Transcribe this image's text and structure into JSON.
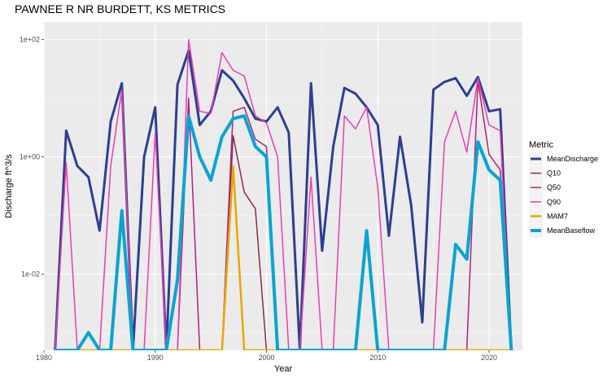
{
  "chart_data": {
    "type": "line",
    "title": "PAWNEE R NR BURDETT, KS  METRICS",
    "xlabel": "Year",
    "ylabel": "Discharge ft^3/s",
    "x_scale": "linear",
    "y_scale": "log10",
    "xlim": [
      1980,
      2023
    ],
    "ylim": [
      0.0005,
      200
    ],
    "x_ticks": [
      {
        "value": 1980,
        "label": "1980"
      },
      {
        "value": 1990,
        "label": "1990"
      },
      {
        "value": 2000,
        "label": "2000"
      },
      {
        "value": 2010,
        "label": "2010"
      },
      {
        "value": 2020,
        "label": "2020"
      }
    ],
    "y_ticks": [
      {
        "value": 0.01,
        "label": "1e-02"
      },
      {
        "value": 1,
        "label": "1e+00"
      },
      {
        "value": 100,
        "label": "1e+02"
      }
    ],
    "grid": true,
    "legend": {
      "title": "Metric",
      "position": "right"
    },
    "years": [
      1981,
      1982,
      1983,
      1984,
      1985,
      1986,
      1987,
      1988,
      1989,
      1990,
      1991,
      1992,
      1993,
      1994,
      1995,
      1996,
      1997,
      1998,
      1999,
      2000,
      2001,
      2002,
      2003,
      2004,
      2005,
      2006,
      2007,
      2008,
      2009,
      2010,
      2011,
      2012,
      2013,
      2014,
      2015,
      2016,
      2017,
      2018,
      2019,
      2020,
      2021,
      2022
    ],
    "series": [
      {
        "name": "MeanDischarge",
        "color": "#2e3f8f",
        "width": 3,
        "values": [
          0.0005,
          2.8,
          0.7,
          0.45,
          0.055,
          4,
          18,
          0.0005,
          1,
          7,
          0.0005,
          17,
          65,
          3.5,
          6,
          30,
          20,
          10,
          4.5,
          4,
          7,
          2.6,
          0.0005,
          18,
          0.025,
          1.5,
          15,
          12,
          7,
          3.5,
          0.045,
          2.2,
          0.15,
          0.0015,
          14,
          19,
          22,
          11,
          23,
          6,
          6.5,
          0.0005
        ]
      },
      {
        "name": "Q10",
        "color": "#8b2a4a",
        "width": 1.5,
        "values": [
          0.0005,
          0.0005,
          0.0005,
          0.0005,
          0.0005,
          0.0005,
          0.0005,
          0.0005,
          0.0005,
          0.0005,
          0.0005,
          0.0005,
          0.0005,
          0.0005,
          0.0005,
          0.0005,
          2.3,
          0.25,
          0.13,
          0.0005,
          0.0005,
          0.0005,
          0.0005,
          0.0005,
          0.0005,
          0.0005,
          0.0005,
          0.0005,
          0.0005,
          0.0005,
          0.0005,
          0.0005,
          0.0005,
          0.0005,
          0.0005,
          0.0005,
          0.0005,
          0.0005,
          0.0005,
          0.0005,
          0.0005,
          0.0005
        ]
      },
      {
        "name": "Q50",
        "color": "#b0227a",
        "width": 1.5,
        "values": [
          0.0005,
          0.0005,
          0.0005,
          0.0005,
          0.0005,
          0.0005,
          0.0005,
          0.0005,
          0.0005,
          0.0005,
          0.0005,
          0.0005,
          10,
          0.0005,
          0.0005,
          0.0005,
          6,
          7,
          2,
          1.5,
          0.0005,
          0.0005,
          0.0005,
          0.0005,
          0.0005,
          0.0005,
          0.0005,
          0.0005,
          0.0005,
          0.0005,
          0.0005,
          0.0005,
          0.0005,
          0.0005,
          0.0005,
          0.0005,
          0.0005,
          0.0005,
          20,
          1.1,
          0.6,
          0.0005
        ]
      },
      {
        "name": "Q90",
        "color": "#e83fb0",
        "width": 1.5,
        "values": [
          0.0005,
          0.8,
          0.0005,
          0.0005,
          0.0005,
          0.7,
          14,
          0.0005,
          0.0005,
          2.5,
          0.0005,
          0.0005,
          100,
          6,
          5.5,
          60,
          30,
          24,
          5,
          3.8,
          1,
          0.0005,
          0.0005,
          0.45,
          0.0005,
          0.0005,
          5,
          3,
          7,
          0.3,
          0.0005,
          0.0005,
          0.0005,
          0.0005,
          0.0005,
          1.8,
          6,
          1.2,
          22,
          3.5,
          2.8,
          0.0005
        ]
      },
      {
        "name": "MAM7",
        "color": "#e8a800",
        "width": 2.5,
        "values": [
          0.0005,
          0.0005,
          0.0005,
          0.0005,
          0.0005,
          0.0005,
          0.0005,
          0.0005,
          0.0005,
          0.0005,
          0.0005,
          0.0005,
          0.0005,
          0.0005,
          0.0005,
          0.0005,
          0.7,
          0.0005,
          0.0005,
          0.0005,
          0.0005,
          0.0005,
          0.0005,
          0.0005,
          0.0005,
          0.0005,
          0.0005,
          0.0005,
          0.0005,
          0.0005,
          0.0005,
          0.0005,
          0.0005,
          0.0005,
          0.0005,
          0.0005,
          0.0005,
          0.0005,
          0.0005,
          0.0005,
          0.0005,
          0.0005
        ]
      },
      {
        "name": "MeanBaseflow",
        "color": "#0aa4d0",
        "width": 4,
        "values": [
          0.0005,
          0.0005,
          0.0005,
          0.001,
          0.0005,
          0.0005,
          0.12,
          0.0005,
          0.0005,
          0.0005,
          0.0005,
          0.008,
          5,
          1,
          0.4,
          2.2,
          4.5,
          5,
          1.5,
          1,
          0.0005,
          0.0005,
          0.0005,
          0.0005,
          0.0005,
          0.0005,
          0.0005,
          0.0005,
          0.055,
          0.0005,
          0.0005,
          0.0005,
          0.0005,
          0.0005,
          0.0005,
          0.0005,
          0.032,
          0.018,
          1.8,
          0.6,
          0.4,
          0.0005
        ]
      }
    ]
  }
}
